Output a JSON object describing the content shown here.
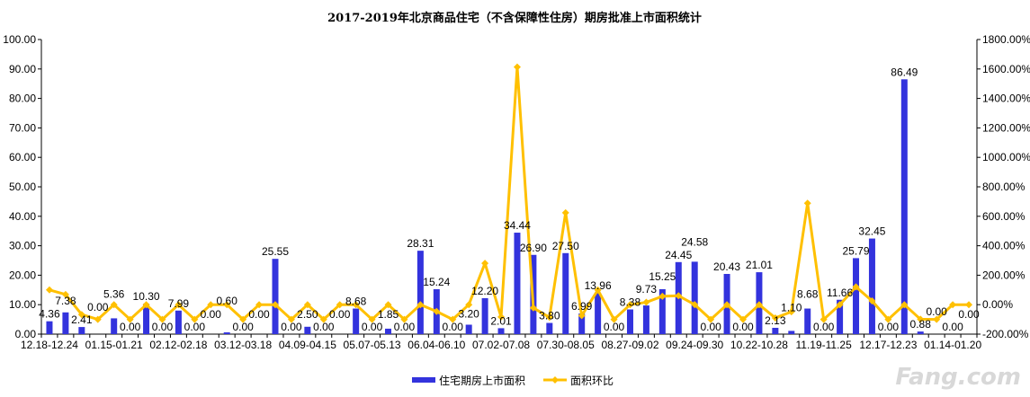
{
  "chart_data": {
    "type": "bar+line",
    "title": "2017-2019年北京商品住宅（不含保障性住房）期房批准上市面积统计",
    "xlabel": "",
    "ylabel_left": "",
    "ylabel_right": "",
    "ylim_left": [
      0,
      100
    ],
    "ylim_right": [
      -200,
      1800
    ],
    "left_ticks": [
      "0.00",
      "10.00",
      "20.00",
      "30.00",
      "40.00",
      "50.00",
      "60.00",
      "70.00",
      "80.00",
      "90.00",
      "100.00"
    ],
    "right_ticks": [
      "-200.00%",
      "0.00%",
      "200.00%",
      "400.00%",
      "600.00%",
      "800.00%",
      "1000.00%",
      "1200.00%",
      "1400.00%",
      "1600.00%",
      "1800.00%"
    ],
    "x_tick_labels": [
      "12.18-12.24",
      "01.15-01.21",
      "02.12-02.18",
      "03.12-03.18",
      "04.09-04.15",
      "05.07-05.13",
      "06.04-06.10",
      "07.02-07.08",
      "07.30-08.05",
      "08.27-09.02",
      "09.24-09.30",
      "10.22-10.28",
      "11.19-11.25",
      "12.17-12.23",
      "01.14-01.20"
    ],
    "x_tick_every": 4,
    "grid": false,
    "legend_position": "bottom",
    "colors": {
      "bar": "#3333DD",
      "line": "#FFC000"
    },
    "series": [
      {
        "name": "住宅期房上市面积",
        "type": "bar",
        "axis": "left",
        "values": [
          4.36,
          7.38,
          2.41,
          0.0,
          5.36,
          0.0,
          10.3,
          0.0,
          7.99,
          0.0,
          0.0,
          0.6,
          0.0,
          0.0,
          25.55,
          0.0,
          2.5,
          0.0,
          0.0,
          8.68,
          0.0,
          1.85,
          0.0,
          28.31,
          15.24,
          0.0,
          3.2,
          12.2,
          2.01,
          34.44,
          26.9,
          3.8,
          27.5,
          6.99,
          13.96,
          0.0,
          8.38,
          9.73,
          15.25,
          24.45,
          24.58,
          0.0,
          20.43,
          0.0,
          21.01,
          2.13,
          1.1,
          8.68,
          0.0,
          11.66,
          25.79,
          32.45,
          0.0,
          86.49,
          0.88,
          0.0,
          0.0,
          0.0
        ]
      },
      {
        "name": "面积环比",
        "type": "line",
        "axis": "right",
        "values": [
          100,
          69.3,
          -67.3,
          -100,
          0,
          -100,
          0,
          -100,
          0,
          -100,
          0,
          0,
          -100,
          0,
          0,
          -100,
          0,
          -100,
          0,
          0,
          -100,
          0,
          -100,
          0,
          -46.2,
          -100,
          0,
          281.3,
          -83.5,
          1613.4,
          -21.9,
          -85.9,
          623.7,
          -74.6,
          99.7,
          -100,
          0,
          16.1,
          56.7,
          60.3,
          0.5,
          -100,
          0,
          -100,
          0,
          -89.9,
          -48.4,
          689.1,
          -100,
          0,
          121.2,
          25.8,
          -100,
          0,
          -99.0,
          -100,
          0,
          0
        ]
      }
    ]
  },
  "watermark": "Fang.com"
}
